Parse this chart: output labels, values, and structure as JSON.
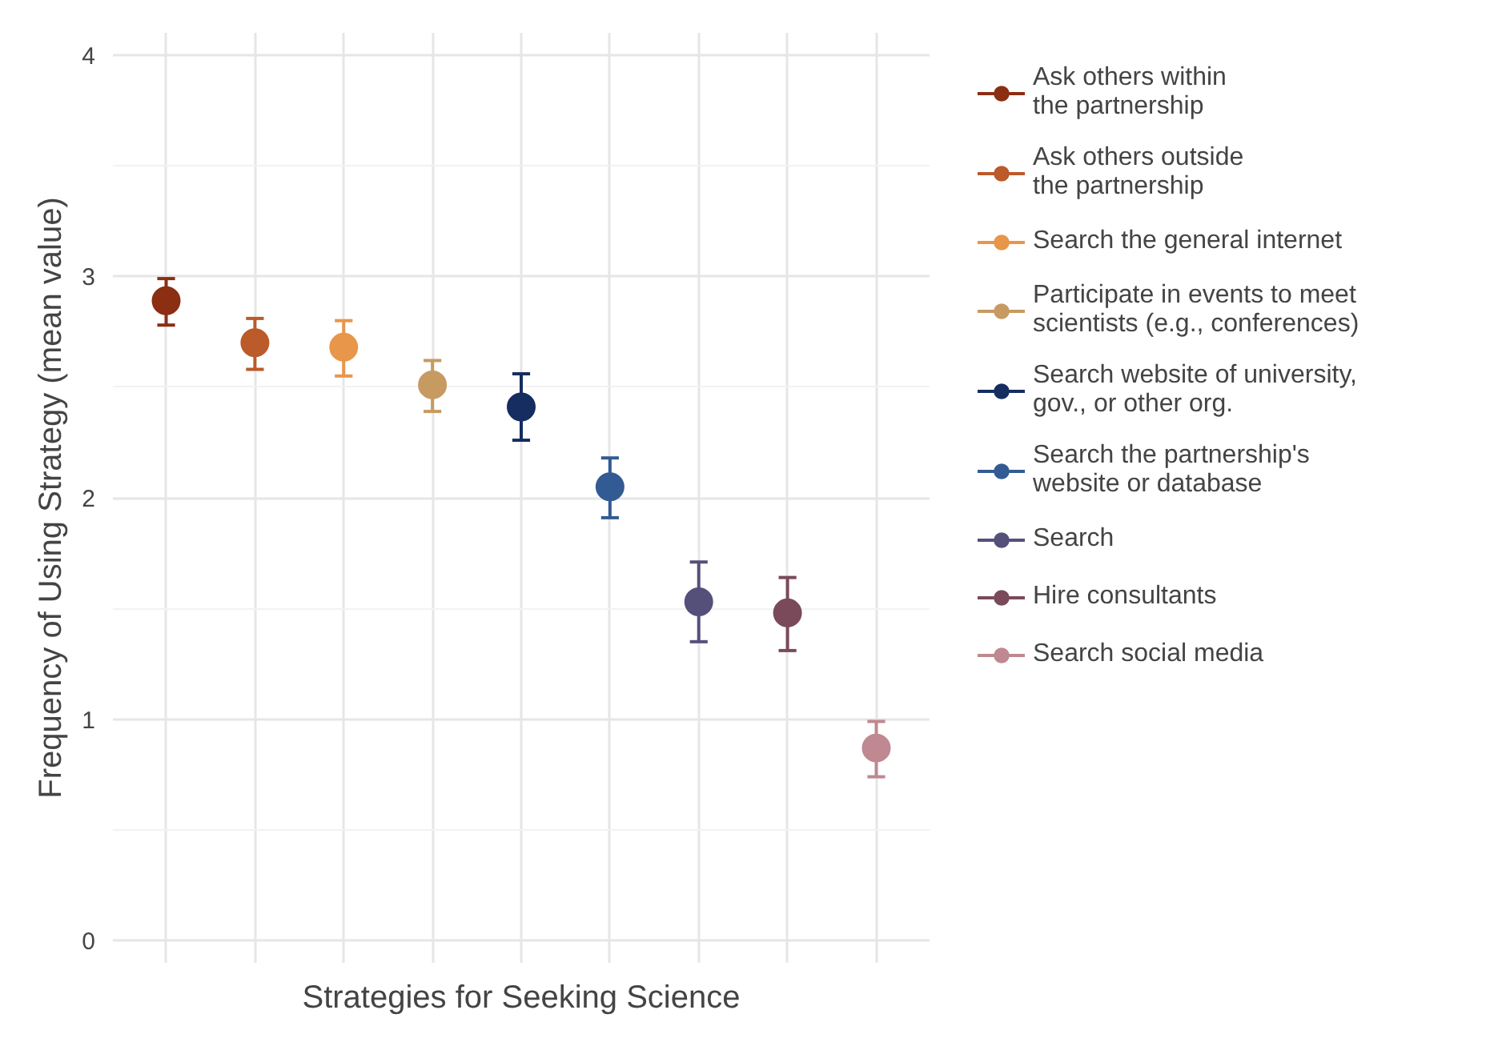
{
  "chart_data": {
    "type": "scatter",
    "xlabel": "Strategies for Seeking Science",
    "ylabel": "Frequency of Using Strategy (mean value)",
    "categories": [
      null,
      null,
      null,
      null,
      null,
      null,
      null,
      null,
      null
    ],
    "ylim": [
      -0.1,
      4.1
    ],
    "yticks": [
      0,
      1,
      2,
      3,
      4
    ],
    "grid": true,
    "legend": "right",
    "marker": "circle",
    "series": [
      {
        "name": "Ask others within\nthe partnership",
        "color": "#8b2e12",
        "values": [
          2.89,
          null,
          null,
          null,
          null,
          null,
          null,
          null,
          null
        ],
        "errors": [
          [
            2.78,
            2.99
          ],
          null,
          null,
          null,
          null,
          null,
          null,
          null,
          null
        ]
      },
      {
        "name": "Ask others outside\nthe partnership",
        "color": "#bb5a2a",
        "values": [
          null,
          2.7,
          null,
          null,
          null,
          null,
          null,
          null,
          null
        ],
        "errors": [
          null,
          [
            2.58,
            2.81
          ],
          null,
          null,
          null,
          null,
          null,
          null,
          null
        ]
      },
      {
        "name": "Search the general internet",
        "color": "#e8964a",
        "values": [
          null,
          null,
          2.68,
          null,
          null,
          null,
          null,
          null,
          null
        ],
        "errors": [
          null,
          null,
          [
            2.55,
            2.8
          ],
          null,
          null,
          null,
          null,
          null,
          null
        ]
      },
      {
        "name": "Participate in events to meet\nscientists (e.g., conferences)",
        "color": "#c79a62",
        "values": [
          null,
          null,
          null,
          2.51,
          null,
          null,
          null,
          null,
          null
        ],
        "errors": [
          null,
          null,
          null,
          [
            2.39,
            2.62
          ],
          null,
          null,
          null,
          null,
          null
        ]
      },
      {
        "name": "Search website of university,\ngov., or other org.",
        "color": "#152d60",
        "values": [
          null,
          null,
          null,
          null,
          2.41,
          null,
          null,
          null,
          null
        ],
        "errors": [
          null,
          null,
          null,
          null,
          [
            2.26,
            2.56
          ],
          null,
          null,
          null,
          null
        ]
      },
      {
        "name": "Search the partnership's\nwebsite or database",
        "color": "#335b93",
        "values": [
          null,
          null,
          null,
          null,
          null,
          2.05,
          null,
          null,
          null
        ],
        "errors": [
          null,
          null,
          null,
          null,
          null,
          [
            1.91,
            2.18
          ],
          null,
          null,
          null
        ]
      },
      {
        "name": "Search",
        "color": "#55507a",
        "values": [
          null,
          null,
          null,
          null,
          null,
          null,
          1.53,
          null,
          null
        ],
        "errors": [
          null,
          null,
          null,
          null,
          null,
          null,
          [
            1.35,
            1.71
          ],
          null,
          null
        ]
      },
      {
        "name": "Hire consultants",
        "color": "#7a4a5a",
        "values": [
          null,
          null,
          null,
          null,
          null,
          null,
          null,
          1.48,
          null
        ],
        "errors": [
          null,
          null,
          null,
          null,
          null,
          null,
          null,
          [
            1.31,
            1.64
          ],
          null
        ]
      },
      {
        "name": "Search social media",
        "color": "#c08890",
        "values": [
          null,
          null,
          null,
          null,
          null,
          null,
          null,
          null,
          0.87
        ],
        "errors": [
          null,
          null,
          null,
          null,
          null,
          null,
          null,
          null,
          [
            0.74,
            0.99
          ]
        ]
      }
    ]
  }
}
